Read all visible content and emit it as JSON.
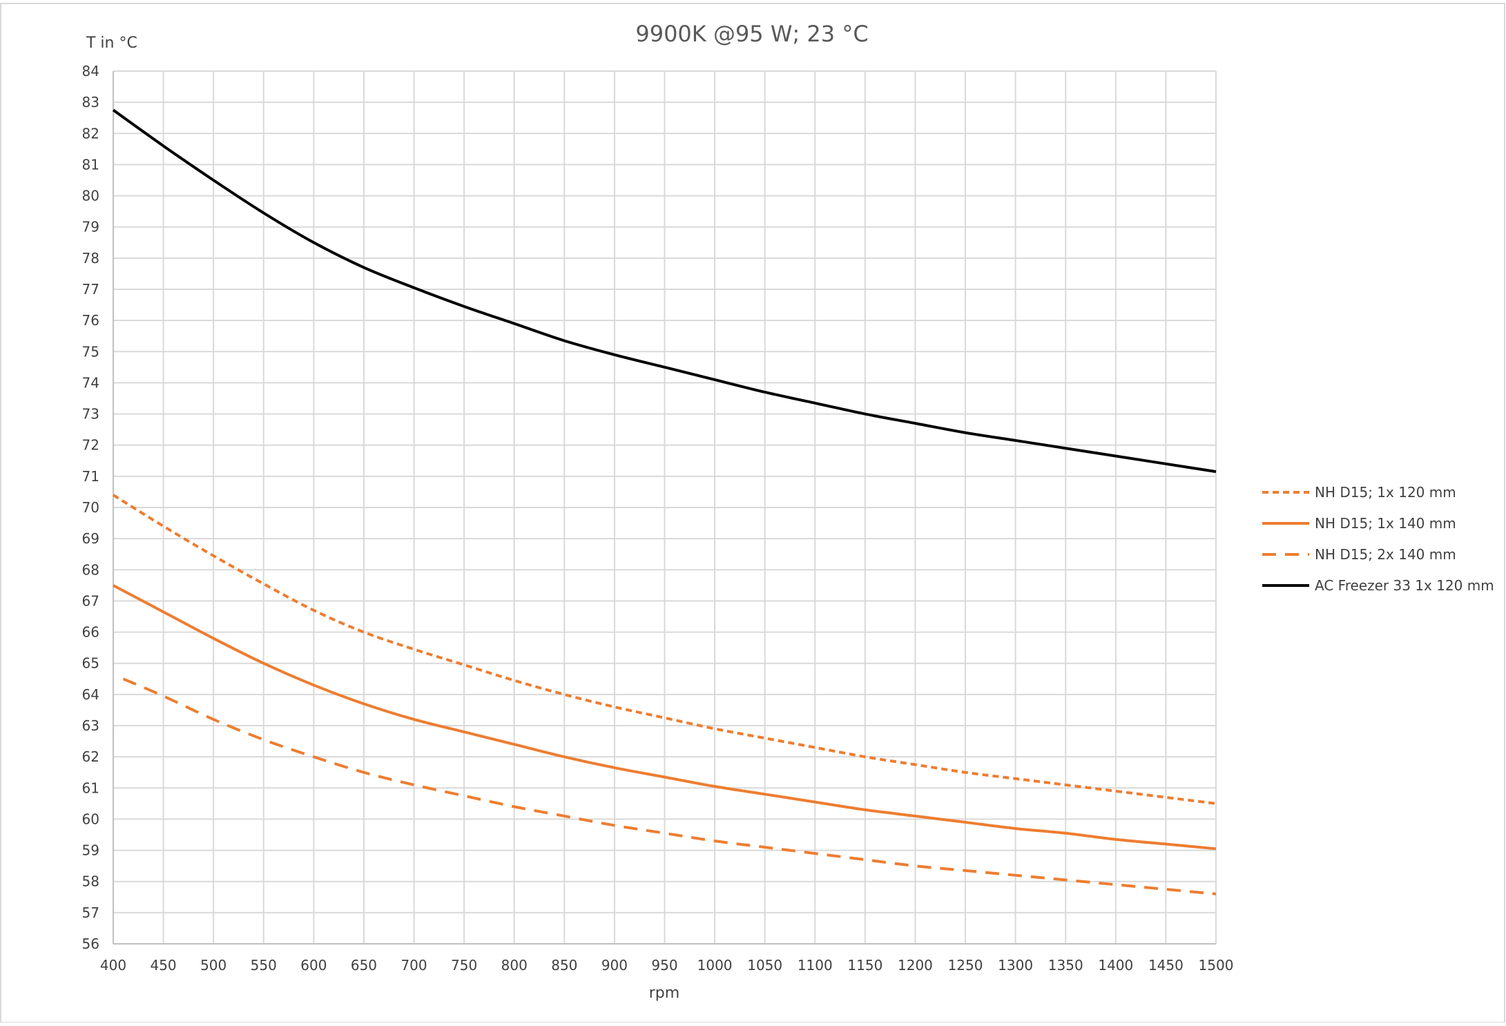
{
  "chart_data": {
    "type": "line",
    "title": "9900K @95 W; 23 °C",
    "xlabel": "rpm",
    "ylabel": "T in °C",
    "xlim": [
      400,
      1500
    ],
    "ylim": [
      56,
      84
    ],
    "x_ticks": [
      400,
      450,
      500,
      550,
      600,
      650,
      700,
      750,
      800,
      850,
      900,
      950,
      1000,
      1050,
      1100,
      1150,
      1200,
      1250,
      1300,
      1350,
      1400,
      1450,
      1500
    ],
    "y_ticks": [
      56,
      57,
      58,
      59,
      60,
      61,
      62,
      63,
      64,
      65,
      66,
      67,
      68,
      69,
      70,
      71,
      72,
      73,
      74,
      75,
      76,
      77,
      78,
      79,
      80,
      81,
      82,
      83,
      84
    ],
    "grid": true,
    "legend_position": "right",
    "series": [
      {
        "name": "NH D15; 1x 120 mm",
        "color": "#ED7D31",
        "dash": "dotted",
        "x": [
          400,
          450,
          500,
          550,
          600,
          650,
          700,
          750,
          800,
          850,
          900,
          950,
          1000,
          1050,
          1100,
          1150,
          1200,
          1250,
          1300,
          1350,
          1400,
          1450,
          1500
        ],
        "y": [
          70.4,
          69.4,
          68.45,
          67.55,
          66.7,
          66.0,
          65.45,
          64.95,
          64.45,
          64.0,
          63.6,
          63.25,
          62.9,
          62.6,
          62.3,
          62.0,
          61.75,
          61.5,
          61.3,
          61.1,
          60.9,
          60.7,
          60.5
        ]
      },
      {
        "name": "NH D15; 1x 140 mm",
        "color": "#ED7D31",
        "dash": "solid",
        "x": [
          400,
          450,
          500,
          550,
          600,
          650,
          700,
          750,
          800,
          850,
          900,
          950,
          1000,
          1050,
          1100,
          1150,
          1200,
          1250,
          1300,
          1350,
          1400,
          1450,
          1500
        ],
        "y": [
          67.5,
          66.65,
          65.8,
          65.0,
          64.3,
          63.7,
          63.2,
          62.8,
          62.4,
          62.0,
          61.65,
          61.35,
          61.05,
          60.8,
          60.55,
          60.3,
          60.1,
          59.9,
          59.7,
          59.55,
          59.35,
          59.2,
          59.05
        ]
      },
      {
        "name": "NH D15; 2x 140 mm",
        "color": "#ED7D31",
        "dash": "dashed",
        "x": [
          410,
          450,
          500,
          550,
          600,
          650,
          700,
          750,
          800,
          850,
          900,
          950,
          1000,
          1050,
          1100,
          1150,
          1200,
          1250,
          1300,
          1350,
          1400,
          1450,
          1500
        ],
        "y": [
          64.5,
          63.95,
          63.2,
          62.55,
          62.0,
          61.5,
          61.1,
          60.75,
          60.4,
          60.1,
          59.8,
          59.55,
          59.3,
          59.1,
          58.9,
          58.7,
          58.5,
          58.35,
          58.2,
          58.05,
          57.9,
          57.75,
          57.6
        ]
      },
      {
        "name": "AC Freezer 33 1x 120 mm",
        "color": "#000000",
        "dash": "solid",
        "x": [
          400,
          450,
          500,
          550,
          600,
          650,
          700,
          750,
          800,
          850,
          900,
          950,
          1000,
          1050,
          1100,
          1150,
          1200,
          1250,
          1300,
          1350,
          1400,
          1450,
          1500
        ],
        "y": [
          82.75,
          81.6,
          80.5,
          79.45,
          78.5,
          77.7,
          77.05,
          76.45,
          75.9,
          75.35,
          74.9,
          74.5,
          74.1,
          73.7,
          73.35,
          73.0,
          72.7,
          72.4,
          72.15,
          71.9,
          71.65,
          71.4,
          71.15
        ]
      }
    ]
  }
}
